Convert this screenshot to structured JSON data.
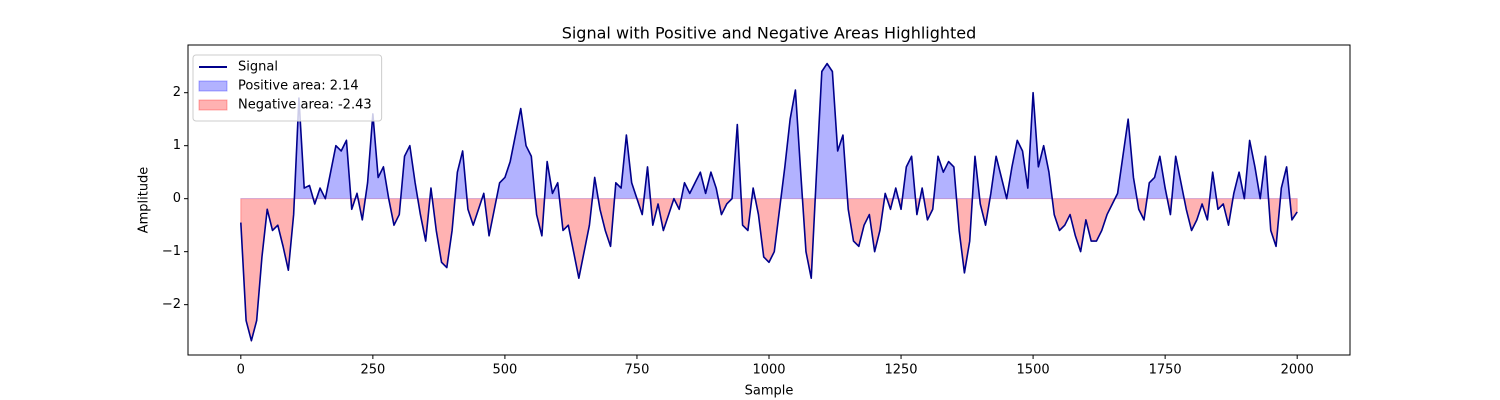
{
  "chart_data": {
    "type": "line",
    "title": "Signal with Positive and Negative Areas Highlighted",
    "xlabel": "Sample",
    "ylabel": "Amplitude",
    "x": [
      0,
      10,
      20,
      30,
      40,
      50,
      60,
      70,
      80,
      90,
      100,
      110,
      120,
      130,
      140,
      150,
      160,
      170,
      180,
      190,
      200,
      210,
      220,
      230,
      240,
      250,
      260,
      270,
      280,
      290,
      300,
      310,
      320,
      330,
      340,
      350,
      360,
      370,
      380,
      390,
      400,
      410,
      420,
      430,
      440,
      450,
      460,
      470,
      480,
      490,
      500,
      510,
      520,
      530,
      540,
      550,
      560,
      570,
      580,
      590,
      600,
      610,
      620,
      630,
      640,
      650,
      660,
      670,
      680,
      690,
      700,
      710,
      720,
      730,
      740,
      750,
      760,
      770,
      780,
      790,
      800,
      810,
      820,
      830,
      840,
      850,
      860,
      870,
      880,
      890,
      900,
      910,
      920,
      930,
      940,
      950,
      960,
      970,
      980,
      990,
      1000,
      1010,
      1020,
      1030,
      1040,
      1050,
      1060,
      1070,
      1080,
      1090,
      1100,
      1110,
      1120,
      1130,
      1140,
      1150,
      1160,
      1170,
      1180,
      1190,
      1200,
      1210,
      1220,
      1230,
      1240,
      1250,
      1260,
      1270,
      1280,
      1290,
      1300,
      1310,
      1320,
      1330,
      1340,
      1350,
      1360,
      1370,
      1380,
      1390,
      1400,
      1410,
      1420,
      1430,
      1440,
      1450,
      1460,
      1470,
      1480,
      1490,
      1500,
      1510,
      1520,
      1530,
      1540,
      1550,
      1560,
      1570,
      1580,
      1590,
      1600,
      1610,
      1620,
      1630,
      1640,
      1650,
      1660,
      1670,
      1680,
      1690,
      1700,
      1710,
      1720,
      1730,
      1740,
      1750,
      1760,
      1770,
      1780,
      1790,
      1800,
      1810,
      1820,
      1830,
      1840,
      1850,
      1860,
      1870,
      1880,
      1890,
      1900,
      1910,
      1920,
      1930,
      1940,
      1950,
      1960,
      1970,
      1980,
      1990,
      2000
    ],
    "series": [
      {
        "name": "Signal",
        "color": "#00008b",
        "values": [
          -0.45,
          -2.3,
          -2.68,
          -2.3,
          -1.1,
          -0.2,
          -0.6,
          -0.5,
          -0.9,
          -1.35,
          -0.3,
          1.9,
          0.2,
          0.25,
          -0.1,
          0.2,
          0.0,
          0.5,
          1.0,
          0.9,
          1.1,
          -0.2,
          0.1,
          -0.4,
          0.3,
          1.6,
          0.4,
          0.6,
          0.0,
          -0.5,
          -0.3,
          0.8,
          1.0,
          0.3,
          -0.3,
          -0.8,
          0.2,
          -0.6,
          -1.2,
          -1.3,
          -0.6,
          0.5,
          0.9,
          -0.2,
          -0.5,
          -0.2,
          0.1,
          -0.7,
          -0.2,
          0.3,
          0.4,
          0.7,
          1.2,
          1.7,
          1.0,
          0.8,
          -0.3,
          -0.7,
          0.7,
          0.1,
          0.3,
          -0.6,
          -0.5,
          -1.0,
          -1.5,
          -1.0,
          -0.5,
          0.4,
          -0.2,
          -0.6,
          -0.9,
          0.3,
          0.2,
          1.2,
          0.3,
          0.0,
          -0.3,
          0.6,
          -0.5,
          -0.1,
          -0.6,
          -0.3,
          0.0,
          -0.2,
          0.3,
          0.1,
          0.3,
          0.5,
          0.1,
          0.5,
          0.2,
          -0.3,
          -0.1,
          0.0,
          1.4,
          -0.5,
          -0.6,
          0.2,
          -0.3,
          -1.1,
          -1.2,
          -1.0,
          -0.2,
          0.6,
          1.5,
          2.05,
          0.5,
          -1.0,
          -1.5,
          0.5,
          2.4,
          2.55,
          2.4,
          0.9,
          1.2,
          -0.2,
          -0.8,
          -0.9,
          -0.5,
          -0.3,
          -1.0,
          -0.6,
          0.1,
          -0.2,
          0.2,
          -0.2,
          0.6,
          0.8,
          -0.3,
          0.2,
          -0.4,
          -0.2,
          0.8,
          0.5,
          0.7,
          0.6,
          -0.6,
          -1.4,
          -0.8,
          0.8,
          -0.1,
          -0.5,
          0.1,
          0.8,
          0.4,
          0.0,
          0.6,
          1.1,
          0.9,
          0.2,
          2.0,
          0.6,
          1.0,
          0.5,
          -0.3,
          -0.6,
          -0.5,
          -0.3,
          -0.7,
          -1.0,
          -0.4,
          -0.8,
          -0.8,
          -0.6,
          -0.3,
          -0.1,
          0.1,
          0.8,
          1.5,
          0.4,
          -0.2,
          -0.4,
          0.3,
          0.4,
          0.8,
          0.2,
          -0.3,
          0.8,
          0.3,
          -0.2,
          -0.6,
          -0.4,
          -0.1,
          -0.4,
          0.5,
          -0.2,
          -0.1,
          -0.5,
          0.1,
          0.5,
          0.0,
          1.1,
          0.6,
          0.0,
          0.8,
          -0.6,
          -0.9,
          0.2,
          0.6,
          -0.4,
          -0.25
        ]
      }
    ],
    "fills": [
      {
        "name": "Positive area: 2.14",
        "color": "#0000ff",
        "side": "positive"
      },
      {
        "name": "Negative area: -2.43",
        "color": "#ff0000",
        "side": "negative"
      }
    ],
    "xlim": [
      -100,
      2100
    ],
    "ylim": [
      -2.95,
      2.9
    ],
    "xticks": [
      0,
      250,
      500,
      750,
      1000,
      1250,
      1500,
      1750,
      2000
    ],
    "yticks": [
      {
        "value": -2,
        "label": "−2"
      },
      {
        "value": -1,
        "label": "−1"
      },
      0,
      1,
      2
    ],
    "legend": "upper left"
  }
}
